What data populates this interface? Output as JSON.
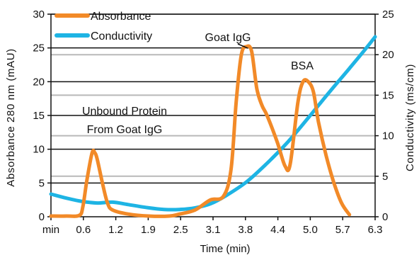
{
  "chart_data": {
    "type": "line",
    "xlabel": "Time (min)",
    "ylabel_left": "Absorbance 280 nm (mAU)",
    "ylabel_right": "Conductivity (ms/cm)",
    "x_tick_labels": [
      "min",
      "0.6",
      "1.2",
      "1.9",
      "2.5",
      "3.1",
      "3.8",
      "4.4",
      "5.0",
      "5.7",
      "6.3"
    ],
    "y_left_ticks": [
      "0",
      "5",
      "10",
      "15",
      "20",
      "25",
      "30"
    ],
    "y_right_ticks": [
      "0",
      "5",
      "10",
      "15",
      "20",
      "25"
    ],
    "ylim_left": [
      0,
      30
    ],
    "ylim_right": [
      0,
      25
    ],
    "xlim": [
      0,
      6.3
    ],
    "grid": true,
    "legend_position": "top-left",
    "series": [
      {
        "name": "Absorbance",
        "axis": "left",
        "color": "#f28a28",
        "points": [
          [
            0,
            0.1
          ],
          [
            0.3,
            0.1
          ],
          [
            0.55,
            0.2
          ],
          [
            0.62,
            1.5
          ],
          [
            0.7,
            5.5
          ],
          [
            0.8,
            9.5
          ],
          [
            0.85,
            9.5
          ],
          [
            0.9,
            8.5
          ],
          [
            1.0,
            5.0
          ],
          [
            1.1,
            2.0
          ],
          [
            1.2,
            1.0
          ],
          [
            1.5,
            0.4
          ],
          [
            1.9,
            0.1
          ],
          [
            2.3,
            0.1
          ],
          [
            2.5,
            0.4
          ],
          [
            2.8,
            1.0
          ],
          [
            3.1,
            2.5
          ],
          [
            3.35,
            3.0
          ],
          [
            3.5,
            7.0
          ],
          [
            3.6,
            17.0
          ],
          [
            3.7,
            24.0
          ],
          [
            3.8,
            25.2
          ],
          [
            3.9,
            24.5
          ],
          [
            4.0,
            19.0
          ],
          [
            4.1,
            16.5
          ],
          [
            4.2,
            15.0
          ],
          [
            4.4,
            11.0
          ],
          [
            4.55,
            7.5
          ],
          [
            4.65,
            7.8
          ],
          [
            4.8,
            17.0
          ],
          [
            4.9,
            20.0
          ],
          [
            5.0,
            20.0
          ],
          [
            5.1,
            18.5
          ],
          [
            5.2,
            14.0
          ],
          [
            5.35,
            9.0
          ],
          [
            5.5,
            5.0
          ],
          [
            5.65,
            2.0
          ],
          [
            5.8,
            0.3
          ]
        ]
      },
      {
        "name": "Conductivity",
        "axis": "right",
        "color": "#1eb4e4",
        "points": [
          [
            0,
            2.8
          ],
          [
            0.3,
            2.3
          ],
          [
            0.6,
            1.9
          ],
          [
            0.9,
            1.7
          ],
          [
            1.2,
            1.8
          ],
          [
            1.5,
            1.5
          ],
          [
            1.9,
            1.1
          ],
          [
            2.2,
            0.9
          ],
          [
            2.5,
            0.9
          ],
          [
            2.8,
            1.1
          ],
          [
            3.1,
            1.6
          ],
          [
            3.4,
            2.6
          ],
          [
            3.8,
            4.3
          ],
          [
            4.2,
            6.6
          ],
          [
            4.6,
            9.2
          ],
          [
            5.0,
            12.2
          ],
          [
            5.4,
            15.3
          ],
          [
            5.8,
            18.3
          ],
          [
            6.1,
            20.6
          ],
          [
            6.3,
            22.2
          ]
        ]
      }
    ],
    "annotations": [
      {
        "label": "Goat IgG",
        "x": 3.8,
        "y": 25.2
      },
      {
        "label": "BSA",
        "x": 5.0,
        "y": 20.0
      },
      {
        "label_lines": [
          "Unbound Protein",
          "From Goat IgG"
        ],
        "x": 0.82,
        "y": 9.5
      }
    ]
  }
}
